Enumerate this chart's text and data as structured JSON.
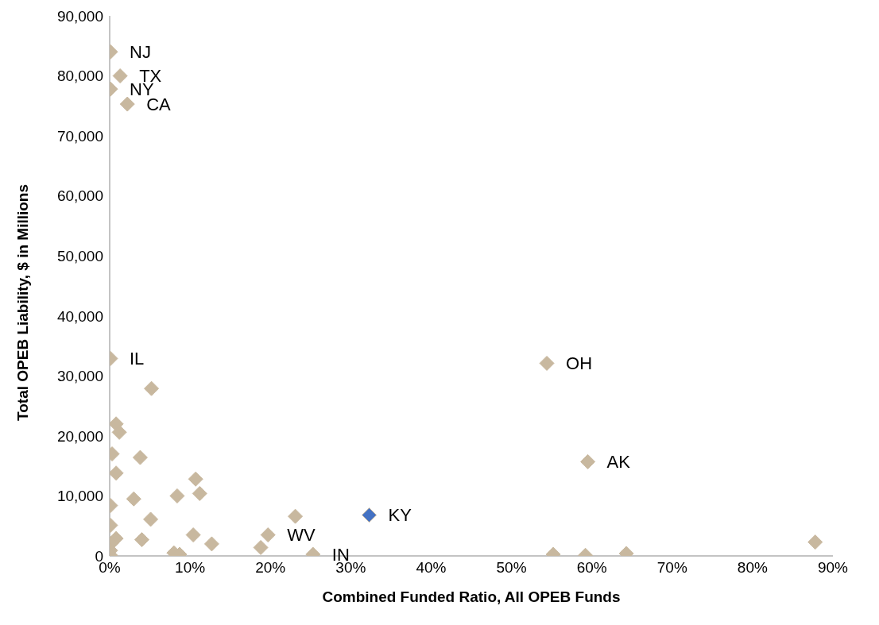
{
  "chart_data": {
    "type": "scatter",
    "xlabel": "Combined Funded Ratio, All OPEB Funds",
    "ylabel": "Total OPEB Liability, $ in Millions",
    "marker": "diamond",
    "grid": false,
    "legend": false,
    "xlim": [
      0,
      90
    ],
    "ylim": [
      0,
      90000
    ],
    "xticks": [
      {
        "value": 0,
        "label": "0%"
      },
      {
        "value": 10,
        "label": "10%"
      },
      {
        "value": 20,
        "label": "20%"
      },
      {
        "value": 30,
        "label": "30%"
      },
      {
        "value": 40,
        "label": "40%"
      },
      {
        "value": 50,
        "label": "50%"
      },
      {
        "value": 60,
        "label": "60%"
      },
      {
        "value": 70,
        "label": "70%"
      },
      {
        "value": 80,
        "label": "80%"
      },
      {
        "value": 90,
        "label": "90%"
      }
    ],
    "yticks": [
      {
        "value": 0,
        "label": "0"
      },
      {
        "value": 10000,
        "label": "10,000"
      },
      {
        "value": 20000,
        "label": "20,000"
      },
      {
        "value": 30000,
        "label": "30,000"
      },
      {
        "value": 40000,
        "label": "40,000"
      },
      {
        "value": 50000,
        "label": "50,000"
      },
      {
        "value": 60000,
        "label": "60,000"
      },
      {
        "value": 70000,
        "label": "70,000"
      },
      {
        "value": 80000,
        "label": "80,000"
      },
      {
        "value": 90000,
        "label": "90,000"
      }
    ],
    "series": [
      {
        "color": "#c8b89f",
        "x": [
          0.1,
          1.3,
          0.1,
          2.2,
          0.1,
          5.2,
          0.8,
          1.2,
          0.3,
          3.8,
          0.8,
          10.7,
          11.2,
          3.0,
          8.4,
          0.1,
          5.1,
          0.1,
          0.8,
          0.2,
          0.1,
          0.1,
          4.0,
          10.4,
          12.7,
          8.0,
          8.7,
          18.8,
          19.7,
          23.1,
          25.3,
          54.4,
          59.5,
          55.2,
          59.2,
          64.3,
          87.8
        ],
        "values": [
          84000,
          80000,
          77800,
          75300,
          32900,
          27900,
          22000,
          20600,
          17000,
          16400,
          13800,
          12800,
          10400,
          9500,
          10000,
          8400,
          6100,
          5100,
          2900,
          2100,
          900,
          100,
          2700,
          3500,
          2000,
          500,
          260,
          1400,
          3500,
          6600,
          260,
          32100,
          15700,
          260,
          100,
          400,
          2300
        ]
      },
      {
        "color": "#4472c4",
        "x": [
          32.3
        ],
        "values": [
          6800
        ]
      }
    ],
    "annotations": [
      {
        "text": "NJ",
        "x": 0.1,
        "y": 84000
      },
      {
        "text": "TX",
        "x": 1.3,
        "y": 80000
      },
      {
        "text": "NY",
        "x": 0.1,
        "y": 77800
      },
      {
        "text": "CA",
        "x": 2.2,
        "y": 75300
      },
      {
        "text": "IL",
        "x": 0.1,
        "y": 32900
      },
      {
        "text": "OH",
        "x": 54.4,
        "y": 32100
      },
      {
        "text": "AK",
        "x": 59.5,
        "y": 15700
      },
      {
        "text": "KY",
        "x": 32.3,
        "y": 6800
      },
      {
        "text": "WV",
        "x": 19.7,
        "y": 3500
      },
      {
        "text": "IN",
        "x": 25.3,
        "y": 260
      }
    ]
  }
}
